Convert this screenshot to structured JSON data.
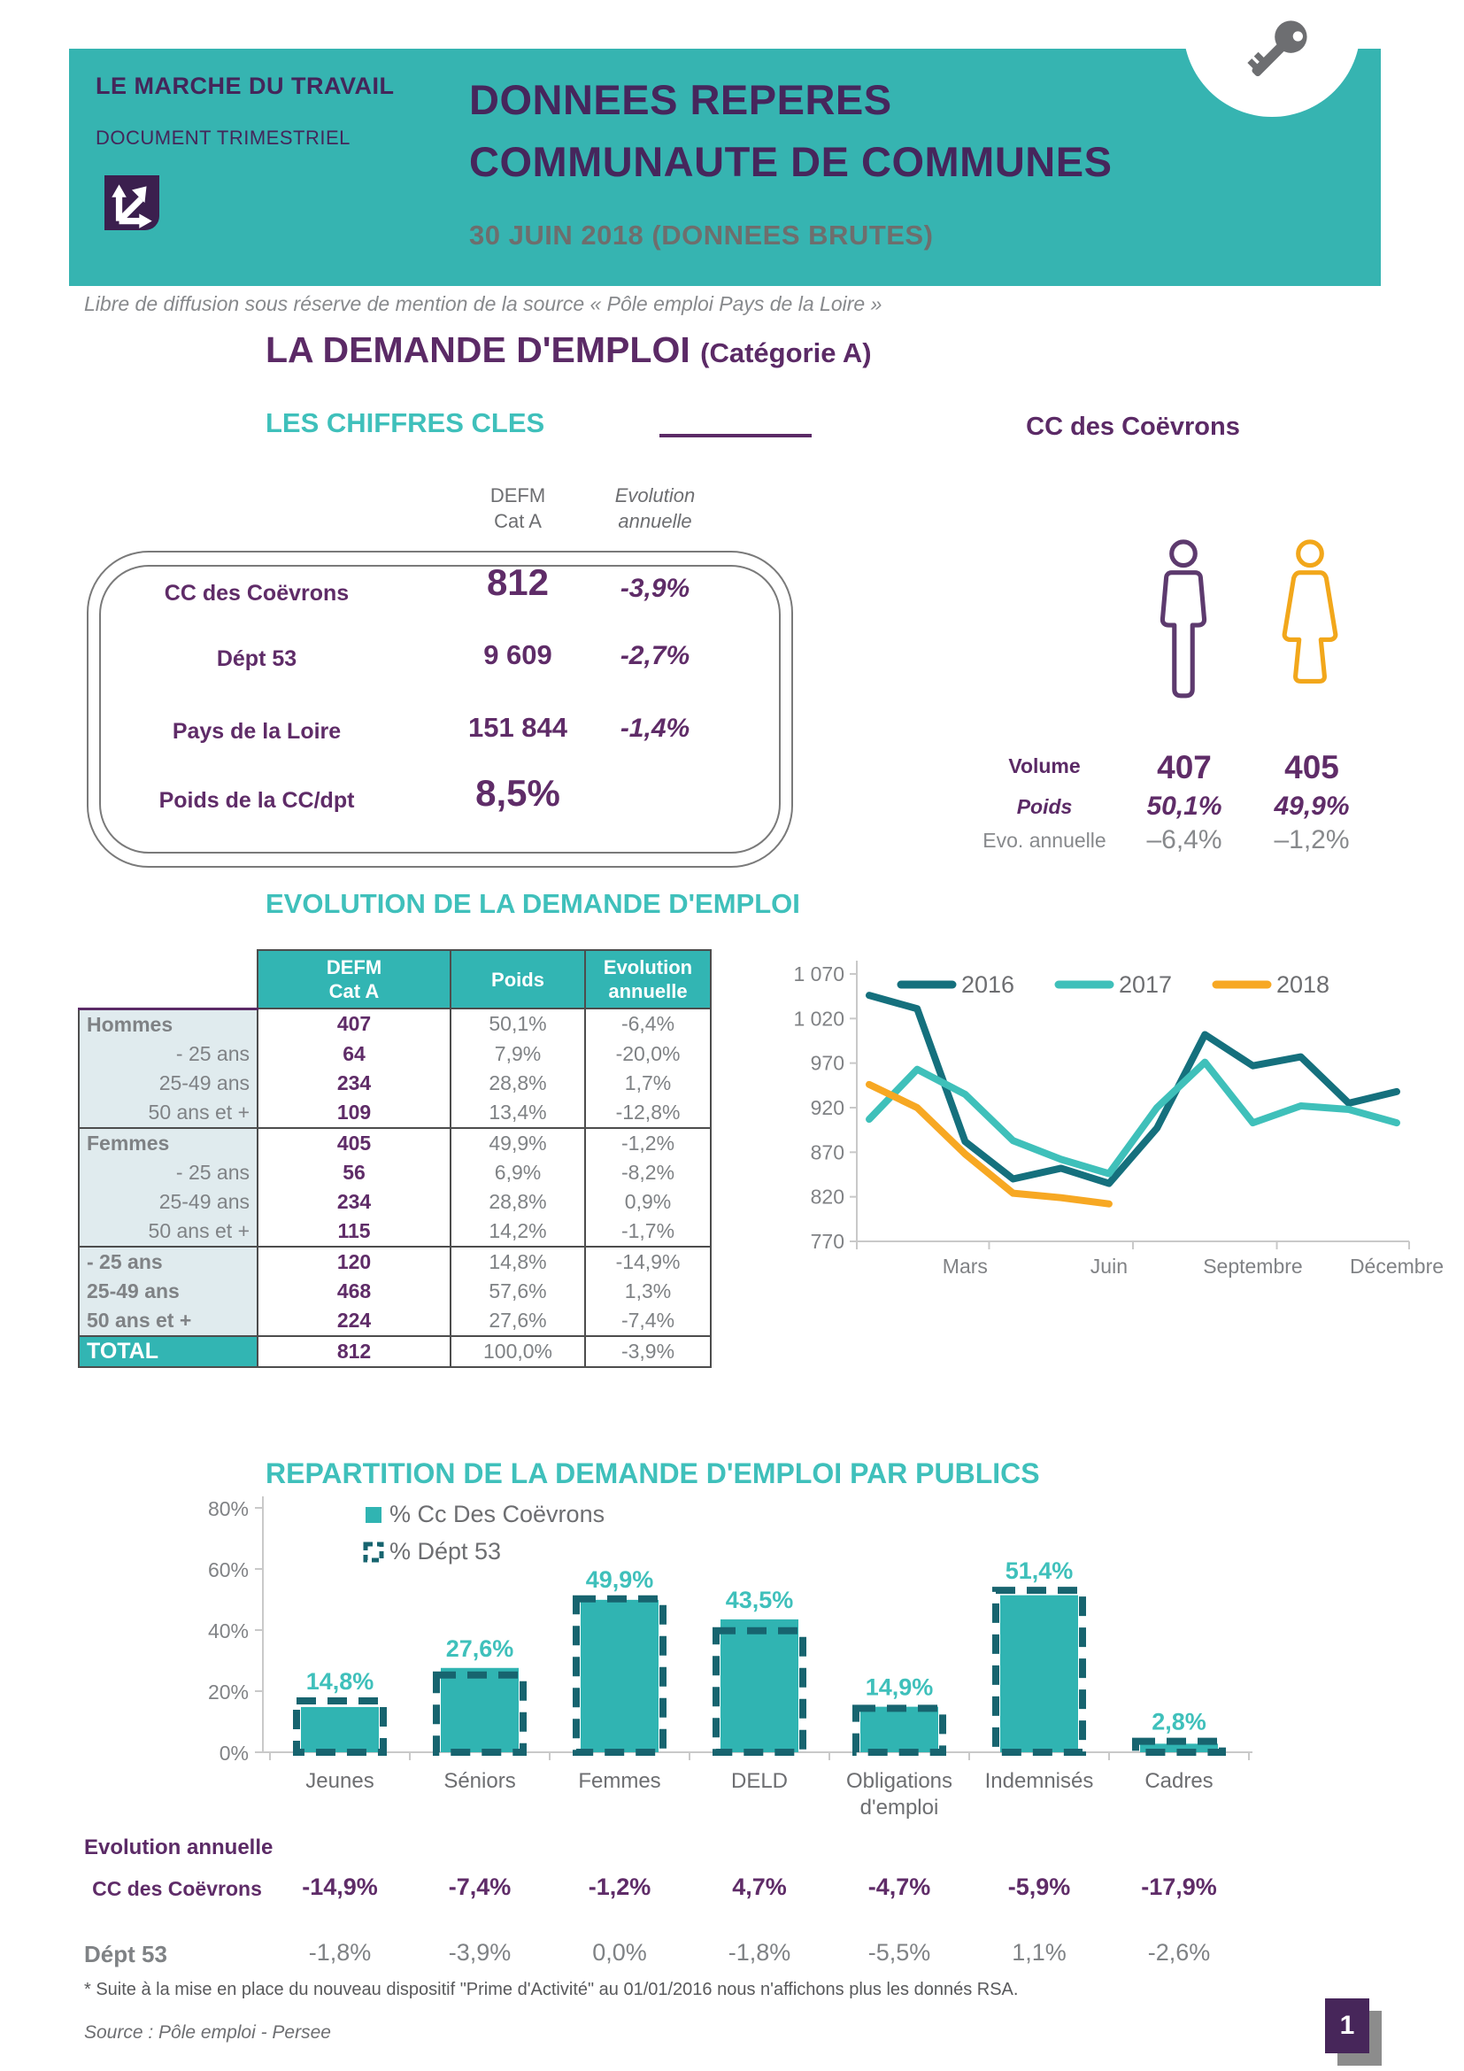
{
  "header": {
    "brand_title": "LE MARCHE DU TRAVAIL",
    "brand_subtitle": "DOCUMENT TRIMESTRIEL",
    "logo_icon": "shuffle-arrows-icon",
    "key_icon": "key-icon",
    "title_line1": "DONNEES REPERES",
    "title_line2": "COMMUNAUTE DE COMMUNES",
    "date_line": "30 JUIN 2018 (DONNEES BRUTES)"
  },
  "diffusion_note": "Libre de diffusion sous réserve de mention de la source  « Pôle emploi Pays de la Loire »",
  "main_title": {
    "text": "LA DEMANDE D'EMPLOI",
    "suffix": "(Catégorie A)"
  },
  "key_figures": {
    "section_title": "LES CHIFFRES CLES",
    "right_title": "CC des Coëvrons",
    "col_headers": [
      {
        "line1": "DEFM",
        "line2": "Cat A"
      },
      {
        "line1": "Evolution",
        "line2": "annuelle"
      }
    ],
    "rows": [
      {
        "label": "CC des Coëvrons",
        "value": "812",
        "evolution": "-3,9%"
      },
      {
        "label": "Dépt 53",
        "value": "9 609",
        "evolution": "-2,7%"
      },
      {
        "label": "Pays de la Loire",
        "value": "151 844",
        "evolution": "-1,4%"
      },
      {
        "label": "Poids de la CC/dpt",
        "value": "8,5%",
        "evolution": ""
      }
    ]
  },
  "gender_panel": {
    "male_icon": "man-icon",
    "female_icon": "woman-icon",
    "rows": [
      {
        "label": "Volume",
        "male": "407",
        "female": "405"
      },
      {
        "label": "Poids",
        "male": "50,1%",
        "female": "49,9%"
      },
      {
        "label": "Evo. annuelle",
        "male": "–6,4%",
        "female": "–1,2%"
      }
    ]
  },
  "evolution_section_title": "EVOLUTION DE LA DEMANDE D'EMPLOI",
  "demand_table": {
    "col_headers": [
      {
        "line1": "DEFM",
        "line2": "Cat A"
      },
      {
        "line1": "Poids",
        "line2": ""
      },
      {
        "line1": "Evolution",
        "line2": "annuelle"
      }
    ],
    "rows": [
      {
        "label": "Hommes",
        "defm": "407",
        "poids": "50,1%",
        "evolution": "-6,4%"
      },
      {
        "label": "- 25 ans",
        "defm": "64",
        "poids": "7,9%",
        "evolution": "-20,0%"
      },
      {
        "label": "25-49 ans",
        "defm": "234",
        "poids": "28,8%",
        "evolution": "1,7%"
      },
      {
        "label": "50 ans et +",
        "defm": "109",
        "poids": "13,4%",
        "evolution": "-12,8%"
      },
      {
        "label": "Femmes",
        "defm": "405",
        "poids": "49,9%",
        "evolution": "-1,2%"
      },
      {
        "label": "- 25 ans",
        "defm": "56",
        "poids": "6,9%",
        "evolution": "-8,2%"
      },
      {
        "label": "25-49 ans",
        "defm": "234",
        "poids": "28,8%",
        "evolution": "0,9%"
      },
      {
        "label": "50 ans et +",
        "defm": "115",
        "poids": "14,2%",
        "evolution": "-1,7%"
      },
      {
        "label": "- 25 ans",
        "defm": "120",
        "poids": "14,8%",
        "evolution": "-14,9%"
      },
      {
        "label": "25-49 ans",
        "defm": "468",
        "poids": "57,6%",
        "evolution": "1,3%"
      },
      {
        "label": "50 ans et +",
        "defm": "224",
        "poids": "27,6%",
        "evolution": "-7,4%"
      },
      {
        "label": "TOTAL",
        "defm": "812",
        "poids": "100,0%",
        "evolution": "-3,9%"
      }
    ]
  },
  "repartition_title": "REPARTITION DE LA DEMANDE D'EMPLOI PAR PUBLICS",
  "publics_evolution": {
    "title": "Evolution annuelle",
    "rows": [
      {
        "label": "CC des Coëvrons",
        "values": [
          "-14,9%",
          "-7,4%",
          "-1,2%",
          "4,7%",
          "-4,7%",
          "-5,9%",
          "-17,9%"
        ]
      },
      {
        "label": "Dépt 53",
        "values": [
          "-1,8%",
          "-3,9%",
          "0,0%",
          "-1,8%",
          "-5,5%",
          "1,1%",
          "-2,6%"
        ]
      }
    ]
  },
  "footnote": "* Suite à la mise en place du nouveau dispositif \"Prime d'Activité\" au 01/01/2016 nous n'affichons plus les donnés RSA.",
  "source": "Source : Pôle emploi - Persee",
  "page_number": "1",
  "colors": {
    "header_teal": "#36b4b1",
    "title_teal": "#3fc0bb",
    "purple_dark": "#46265c",
    "purple": "#5b2a66",
    "purple_value": "#5f2c68",
    "gray_text": "#7f8285",
    "bar_fill": "#30b4b2",
    "bar_outline": "#17646f"
  },
  "chart_data": [
    {
      "type": "line",
      "title": "Evolution mensuelle de la DEFM Cat A",
      "ylim": [
        770,
        1070
      ],
      "yticks": [
        {
          "value": 770,
          "label": "770"
        },
        {
          "value": 820,
          "label": "820"
        },
        {
          "value": 870,
          "label": "870"
        },
        {
          "value": 920,
          "label": "920"
        },
        {
          "value": 970,
          "label": "970"
        },
        {
          "value": 1020,
          "label": "1 020"
        },
        {
          "value": 1070,
          "label": "1 070"
        }
      ],
      "x_count": 12,
      "x_ticks": [
        {
          "index": 2,
          "label": "Mars"
        },
        {
          "index": 5,
          "label": "Juin"
        },
        {
          "index": 8,
          "label": "Septembre"
        },
        {
          "index": 11,
          "label": "Décembre"
        }
      ],
      "legend_position": "top",
      "series": [
        {
          "name": "2016",
          "color": "#15707d",
          "values": [
            1046,
            1031,
            882,
            840,
            852,
            835,
            897,
            1002,
            967,
            977,
            925,
            938
          ]
        },
        {
          "name": "2017",
          "color": "#3fc0ba",
          "values": [
            907,
            963,
            935,
            883,
            862,
            846,
            920,
            971,
            903,
            922,
            918,
            903
          ]
        },
        {
          "name": "2018",
          "color": "#f7a823",
          "values": [
            946,
            920,
            868,
            824,
            819,
            812
          ]
        }
      ]
    },
    {
      "type": "bar",
      "title": "Répartition de la demande d'emploi par publics",
      "categories": [
        "Jeunes",
        "Séniors",
        "Femmes",
        "DELD",
        "Obligations\nd'emploi",
        "Indemnisés",
        "Cadres"
      ],
      "ylim": [
        0,
        80
      ],
      "yticks": [
        {
          "value": 0,
          "label": "0%"
        },
        {
          "value": 20,
          "label": "20%"
        },
        {
          "value": 40,
          "label": "40%"
        },
        {
          "value": 60,
          "label": "60%"
        },
        {
          "value": 80,
          "label": "80%"
        }
      ],
      "series": [
        {
          "name": "% Cc Des Coëvrons",
          "style": "solid",
          "color": "#30b4b2",
          "values": [
            14.8,
            27.6,
            49.9,
            43.5,
            14.9,
            51.4,
            2.8
          ],
          "labels": [
            "14,8%",
            "27,6%",
            "49,9%",
            "43,5%",
            "14,9%",
            "51,4%",
            "2,8%"
          ]
        },
        {
          "name": "% Dépt 53",
          "style": "dashed-outline",
          "color": "#17646f",
          "values": [
            16.8,
            25.3,
            50.2,
            39.8,
            14.4,
            53.0,
            3.6
          ]
        }
      ]
    }
  ]
}
